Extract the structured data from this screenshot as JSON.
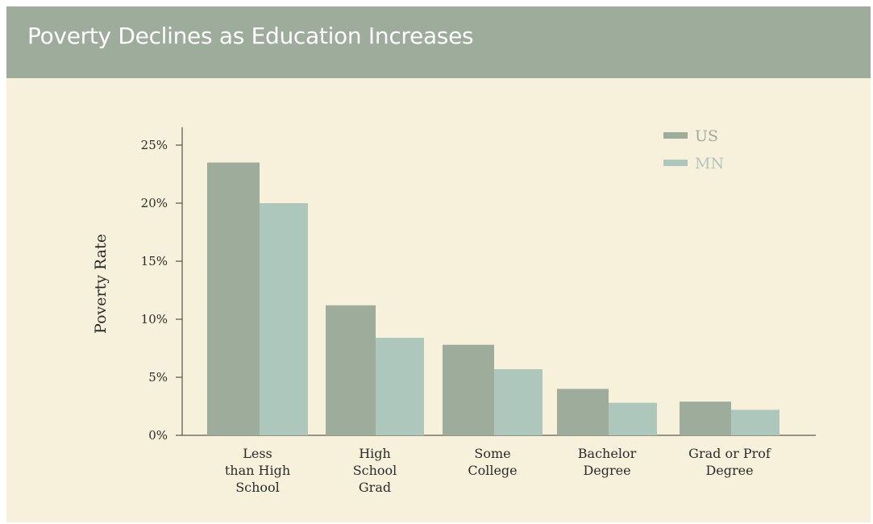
{
  "title": "Poverty Declines as Education Increases",
  "chart_data": {
    "type": "bar",
    "categories": [
      [
        "Less",
        "than High",
        "School"
      ],
      [
        "High",
        "School",
        "Grad"
      ],
      [
        "Some",
        "College"
      ],
      [
        "Bachelor",
        "Degree"
      ],
      [
        "Grad or Prof",
        "Degree"
      ]
    ],
    "series": [
      {
        "name": "US",
        "color": "#9eac9c",
        "values": [
          23.5,
          11.2,
          7.8,
          4.0,
          2.9
        ]
      },
      {
        "name": "MN",
        "color": "#aec7bd",
        "values": [
          20.0,
          8.4,
          5.7,
          2.8,
          2.2
        ]
      }
    ],
    "ylabel": "Poverty Rate",
    "xlabel": "",
    "ylim": [
      0,
      25
    ],
    "yticks": [
      "0%",
      "5%",
      "10%",
      "15%",
      "20%",
      "25%"
    ],
    "grid": false,
    "legend": "top-right"
  }
}
